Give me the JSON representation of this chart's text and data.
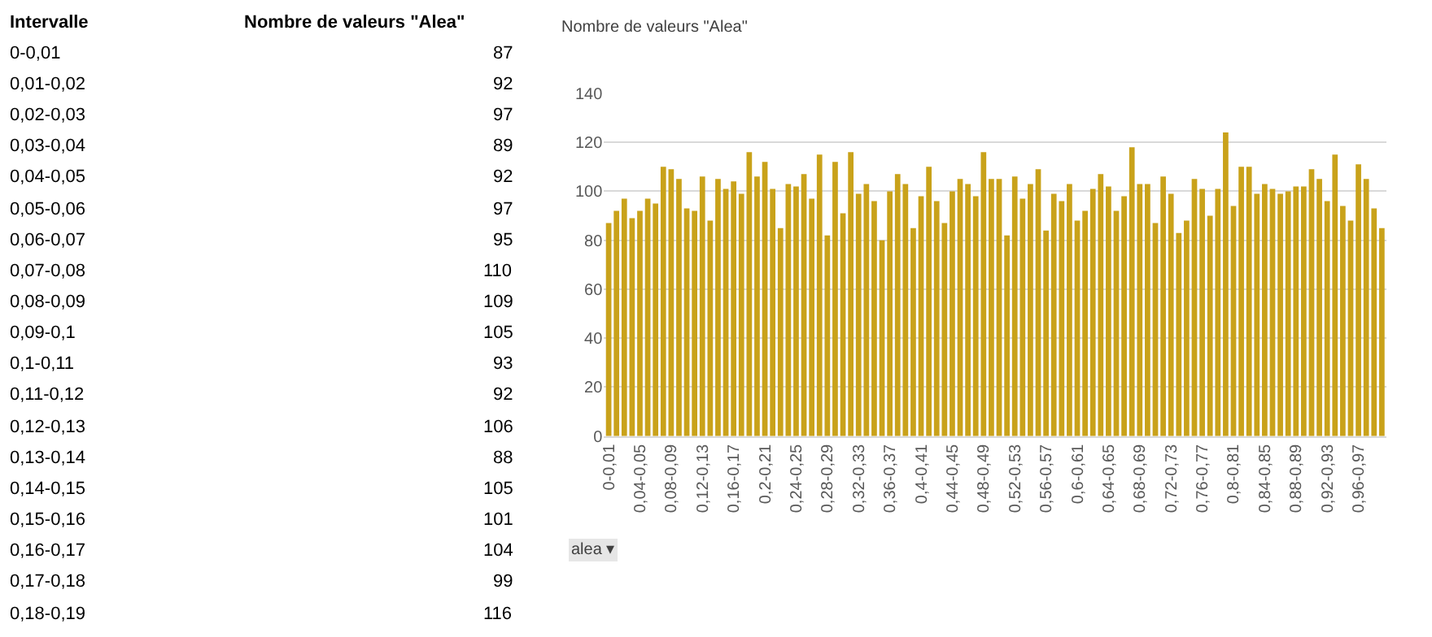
{
  "chart_data": {
    "type": "bar",
    "title": "Nombre de valeurs \"Alea\"",
    "categories": [
      "0-0,01",
      null,
      null,
      null,
      "0,04-0,05",
      null,
      null,
      null,
      "0,08-0,09",
      null,
      null,
      null,
      "0,12-0,13",
      null,
      null,
      null,
      "0,16-0,17",
      null,
      null,
      null,
      "0,2-0,21",
      null,
      null,
      null,
      "0,24-0,25",
      null,
      null,
      null,
      "0,28-0,29",
      null,
      null,
      null,
      "0,32-0,33",
      null,
      null,
      null,
      "0,36-0,37",
      null,
      null,
      null,
      "0,4-0,41",
      null,
      null,
      null,
      "0,44-0,45",
      null,
      null,
      null,
      "0,48-0,49",
      null,
      null,
      null,
      "0,52-0,53",
      null,
      null,
      null,
      "0,56-0,57",
      null,
      null,
      null,
      "0,6-0,61",
      null,
      null,
      null,
      "0,64-0,65",
      null,
      null,
      null,
      "0,68-0,69",
      null,
      null,
      null,
      "0,72-0,73",
      null,
      null,
      null,
      "0,76-0,77",
      null,
      null,
      null,
      "0,8-0,81",
      null,
      null,
      null,
      "0,84-0,85",
      null,
      null,
      null,
      "0,88-0,89",
      null,
      null,
      null,
      "0,92-0,93",
      null,
      null,
      null,
      "0,96-0,97",
      null,
      null,
      null
    ],
    "values": [
      87,
      92,
      97,
      89,
      92,
      97,
      95,
      110,
      109,
      105,
      93,
      92,
      106,
      88,
      105,
      101,
      104,
      99,
      116,
      106,
      112,
      101,
      85,
      103,
      102,
      107,
      97,
      115,
      82,
      112,
      91,
      116,
      99,
      103,
      96,
      80,
      100,
      107,
      103,
      85,
      98,
      110,
      96,
      87,
      100,
      105,
      103,
      98,
      116,
      105,
      105,
      82,
      106,
      97,
      103,
      109,
      84,
      99,
      96,
      103,
      88,
      92,
      101,
      107,
      102,
      92,
      98,
      118,
      103,
      103,
      87,
      106,
      99,
      83,
      88,
      105,
      101,
      90,
      101,
      124,
      94,
      110,
      110,
      99,
      103,
      101,
      99,
      100,
      102,
      102,
      109,
      105,
      96,
      115,
      94,
      88,
      111,
      105,
      93,
      85
    ],
    "color": "#c9a21a",
    "ylim": [
      0,
      140
    ],
    "yticks": [
      0,
      20,
      40,
      60,
      80,
      100,
      120,
      140
    ],
    "grid": "y",
    "annotations": [
      "Intervalle",
      "Nombre de valeurs \"Alea\"",
      "0-0,01",
      "87",
      "0,01-0,02",
      "92",
      "0,02-0,03",
      "97",
      "0,03-0,04",
      "89",
      "0,04-0,05",
      "92",
      "0,05-0,06",
      "97",
      "0,06-0,07",
      "95",
      "0,07-0,08",
      "110",
      "0,08-0,09",
      "109",
      "0,09-0,1",
      "105",
      "0,1-0,11",
      "93",
      "0,11-0,12",
      "92",
      "0,12-0,13",
      "106",
      "0,13-0,14",
      "88",
      "0,14-0,15",
      "105",
      "0,15-0,16",
      "101",
      "0,16-0,17",
      "104",
      "0,17-0,18",
      "99",
      "0,18-0,19",
      "116",
      "alea ▾"
    ]
  }
}
